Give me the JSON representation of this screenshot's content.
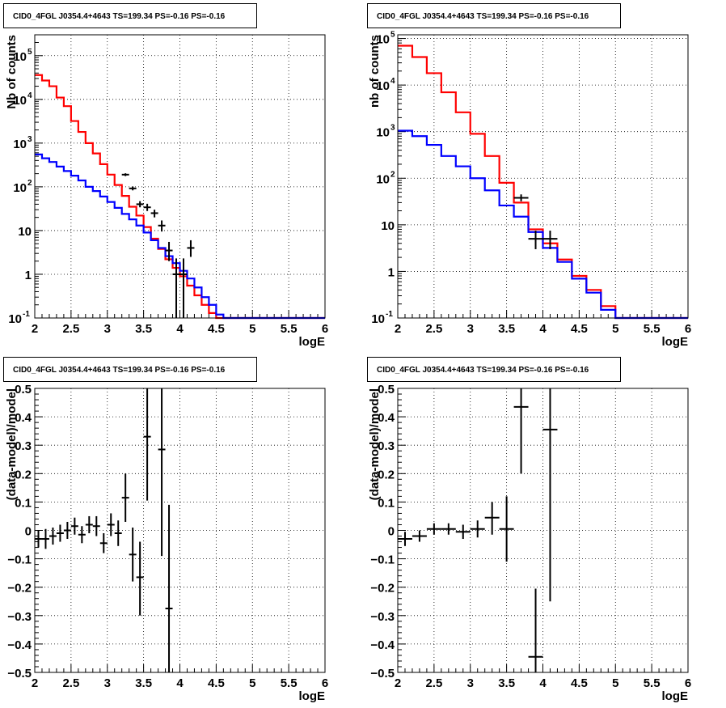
{
  "colors": {
    "data": "#000000",
    "total_model": "#ff0000",
    "component_model": "#0000ff",
    "grid": "#000000"
  },
  "chart_data": [
    {
      "type": "line",
      "title": "CID0_4FGL J0354.4+4643 TS=199.34 PS=-0.16 PS=-0.16",
      "xlabel": "logE",
      "ylabel": "Nb of counts",
      "xlim": [
        2,
        6
      ],
      "ylim": [
        0.1,
        300000
      ],
      "yscale": "log",
      "grid": true,
      "xticks": [
        2,
        2.5,
        3,
        3.5,
        4,
        4.5,
        5,
        5.5,
        6
      ],
      "xtick_labels": [
        "2",
        "2.5",
        "3",
        "3.5",
        "4",
        "4.5",
        "5",
        "5.5",
        "6"
      ],
      "yticks": [
        0.1,
        1,
        10,
        100,
        1000,
        10000,
        100000
      ],
      "ytick_labels": [
        [
          "10",
          "-1"
        ],
        [
          "1",
          ""
        ],
        [
          "10",
          ""
        ],
        [
          "10",
          "2"
        ],
        [
          "10",
          "3"
        ],
        [
          "10",
          "4"
        ],
        [
          "10",
          "5"
        ]
      ],
      "bin_edges": [
        2,
        2.1,
        2.2,
        2.3,
        2.4,
        2.5,
        2.6,
        2.7,
        2.8,
        2.9,
        3,
        3.1,
        3.2,
        3.3,
        3.4,
        3.5,
        3.6,
        3.7,
        3.8,
        3.9,
        4,
        4.1,
        4.2,
        4.3,
        4.4,
        4.5,
        4.6,
        4.7,
        4.8,
        4.9,
        5,
        5.1,
        5.2,
        5.3,
        5.4,
        5.5,
        5.6,
        5.7,
        5.8,
        5.9,
        6
      ],
      "series": [
        {
          "style": "hist",
          "color": "#ff0000",
          "values": [
            36000,
            27000,
            20000,
            11000,
            7000,
            3200,
            1800,
            1000,
            580,
            330,
            190,
            110,
            62,
            35,
            22,
            12,
            6.5,
            3.8,
            2.2,
            1.4,
            0.9,
            0.55,
            0.33,
            0.2,
            0.13,
            0.1,
            0.1,
            0.1,
            0.1,
            0.1,
            0.1,
            0.1,
            0.1,
            0.1,
            0.1,
            0.1,
            0.1,
            0.1,
            0.1,
            0.1
          ]
        },
        {
          "style": "hist",
          "color": "#0000ff",
          "values": [
            550,
            450,
            370,
            290,
            230,
            180,
            140,
            100,
            80,
            60,
            45,
            33,
            24,
            18,
            13,
            9,
            6,
            4,
            2.6,
            1.8,
            1.2,
            0.8,
            0.5,
            0.3,
            0.2,
            0.12,
            0.1,
            0.1,
            0.1,
            0.1,
            0.1,
            0.1,
            0.1,
            0.1,
            0.1,
            0.1,
            0.1,
            0.1,
            0.1,
            0.1
          ]
        },
        {
          "style": "errorbar",
          "color": "#000000",
          "points": [
            {
              "x": 3.25,
              "y": 190,
              "xerr": 0.05,
              "ylo": 176,
              "yhi": 204
            },
            {
              "x": 3.35,
              "y": 92,
              "xerr": 0.05,
              "ylo": 83,
              "yhi": 102
            },
            {
              "x": 3.45,
              "y": 40,
              "xerr": 0.05,
              "ylo": 34,
              "yhi": 47
            },
            {
              "x": 3.55,
              "y": 34,
              "xerr": 0.05,
              "ylo": 28,
              "yhi": 41
            },
            {
              "x": 3.65,
              "y": 25,
              "xerr": 0.05,
              "ylo": 20,
              "yhi": 30
            },
            {
              "x": 3.75,
              "y": 13,
              "xerr": 0.05,
              "ylo": 9.5,
              "yhi": 17
            },
            {
              "x": 3.85,
              "y": 3.5,
              "xerr": 0.05,
              "ylo": 2.0,
              "yhi": 5.5
            },
            {
              "x": 3.95,
              "y": 1,
              "xerr": 0.05,
              "ylo": 0.1,
              "yhi": 2.3
            },
            {
              "x": 4.05,
              "y": 1,
              "xerr": 0.05,
              "ylo": 0.1,
              "yhi": 2.3
            },
            {
              "x": 4.15,
              "y": 4,
              "xerr": 0.05,
              "ylo": 2.5,
              "yhi": 6
            }
          ]
        }
      ]
    },
    {
      "type": "line",
      "title": "CID0_4FGL J0354.4+4643 TS=199.34 PS=-0.16 PS=-0.16",
      "xlabel": "logE",
      "ylabel": "nb of counts",
      "xlim": [
        2,
        6
      ],
      "ylim": [
        0.1,
        120000
      ],
      "yscale": "log",
      "grid": true,
      "xticks": [
        2,
        2.5,
        3,
        3.5,
        4,
        4.5,
        5,
        5.5,
        6
      ],
      "xtick_labels": [
        "2",
        "2.5",
        "3",
        "3.5",
        "4",
        "4.5",
        "5",
        "5.5",
        "6"
      ],
      "yticks": [
        0.1,
        1,
        10,
        100,
        1000,
        10000,
        100000
      ],
      "ytick_labels": [
        [
          "10",
          "-1"
        ],
        [
          "1",
          ""
        ],
        [
          "10",
          ""
        ],
        [
          "10",
          "2"
        ],
        [
          "10",
          "3"
        ],
        [
          "10",
          "4"
        ],
        [
          "10",
          "5"
        ]
      ],
      "bin_edges": [
        2,
        2.2,
        2.4,
        2.6,
        2.8,
        3,
        3.2,
        3.4,
        3.6,
        3.8,
        4,
        4.2,
        4.4,
        4.6,
        4.8,
        5,
        5.2,
        5.4,
        5.6,
        5.8,
        6
      ],
      "series": [
        {
          "style": "hist",
          "color": "#ff0000",
          "values": [
            70000,
            40000,
            18000,
            7000,
            2600,
            900,
            300,
            80,
            30,
            8,
            4,
            1.8,
            0.8,
            0.4,
            0.18,
            0.1,
            0.1,
            0.1,
            0.1,
            0.1
          ]
        },
        {
          "style": "hist",
          "color": "#0000ff",
          "values": [
            1050,
            800,
            520,
            300,
            180,
            100,
            55,
            26,
            15,
            7,
            3.2,
            1.6,
            0.7,
            0.35,
            0.15,
            0.1,
            0.1,
            0.1,
            0.1,
            0.1
          ]
        },
        {
          "style": "errorbar",
          "color": "#000000",
          "points": [
            {
              "x": 3.7,
              "y": 38,
              "xerr": 0.1,
              "ylo": 32,
              "yhi": 45
            },
            {
              "x": 3.9,
              "y": 5,
              "xerr": 0.1,
              "ylo": 3,
              "yhi": 7.5
            },
            {
              "x": 4.1,
              "y": 5,
              "xerr": 0.1,
              "ylo": 3,
              "yhi": 7.5
            }
          ]
        }
      ]
    },
    {
      "type": "scatter",
      "title": "CID0_4FGL J0354.4+4643 TS=199.34 PS=-0.16 PS=-0.16",
      "xlabel": "logE",
      "ylabel": "(data-model)/model",
      "xlim": [
        2,
        6
      ],
      "ylim": [
        -0.5,
        0.5
      ],
      "yscale": "linear",
      "grid": true,
      "xticks": [
        2,
        2.5,
        3,
        3.5,
        4,
        4.5,
        5,
        5.5,
        6
      ],
      "xtick_labels": [
        "2",
        "2.5",
        "3",
        "3.5",
        "4",
        "4.5",
        "5",
        "5.5",
        "6"
      ],
      "yticks": [
        -0.5,
        -0.4,
        -0.3,
        -0.2,
        -0.1,
        0,
        0.1,
        0.2,
        0.3,
        0.4,
        0.5
      ],
      "ytick_labels": [
        "−0.5",
        "−0.4",
        "−0.3",
        "−0.2",
        "−0.1",
        "0",
        "0.1",
        "0.2",
        "0.3",
        "0.4",
        "0.5"
      ],
      "series": [
        {
          "style": "errorbar",
          "color": "#000000",
          "points": [
            {
              "x": 2.05,
              "y": -0.03,
              "xerr": 0.05,
              "ylo": -0.06,
              "yhi": 0.0
            },
            {
              "x": 2.15,
              "y": -0.03,
              "xerr": 0.05,
              "ylo": -0.065,
              "yhi": 0.005
            },
            {
              "x": 2.25,
              "y": -0.02,
              "xerr": 0.05,
              "ylo": -0.05,
              "yhi": 0.01
            },
            {
              "x": 2.35,
              "y": -0.01,
              "xerr": 0.05,
              "ylo": -0.04,
              "yhi": 0.02
            },
            {
              "x": 2.45,
              "y": 0.0,
              "xerr": 0.05,
              "ylo": -0.03,
              "yhi": 0.03
            },
            {
              "x": 2.55,
              "y": 0.015,
              "xerr": 0.05,
              "ylo": -0.015,
              "yhi": 0.045
            },
            {
              "x": 2.65,
              "y": -0.015,
              "xerr": 0.05,
              "ylo": -0.045,
              "yhi": 0.015
            },
            {
              "x": 2.75,
              "y": 0.02,
              "xerr": 0.05,
              "ylo": -0.01,
              "yhi": 0.05
            },
            {
              "x": 2.85,
              "y": 0.015,
              "xerr": 0.05,
              "ylo": -0.02,
              "yhi": 0.05
            },
            {
              "x": 2.95,
              "y": -0.045,
              "xerr": 0.05,
              "ylo": -0.08,
              "yhi": -0.01
            },
            {
              "x": 3.05,
              "y": 0.02,
              "xerr": 0.05,
              "ylo": -0.02,
              "yhi": 0.06
            },
            {
              "x": 3.15,
              "y": -0.01,
              "xerr": 0.05,
              "ylo": -0.055,
              "yhi": 0.035
            },
            {
              "x": 3.25,
              "y": 0.115,
              "xerr": 0.05,
              "ylo": 0.03,
              "yhi": 0.2
            },
            {
              "x": 3.35,
              "y": -0.085,
              "xerr": 0.05,
              "ylo": -0.18,
              "yhi": 0.01
            },
            {
              "x": 3.45,
              "y": -0.165,
              "xerr": 0.05,
              "ylo": -0.3,
              "yhi": -0.04
            },
            {
              "x": 3.55,
              "y": 0.33,
              "xerr": 0.05,
              "ylo": 0.105,
              "yhi": 0.5
            },
            {
              "x": 3.75,
              "y": 0.285,
              "xerr": 0.05,
              "ylo": -0.09,
              "yhi": 0.5
            },
            {
              "x": 3.85,
              "y": -0.275,
              "xerr": 0.05,
              "ylo": -0.5,
              "yhi": 0.09
            }
          ]
        }
      ]
    },
    {
      "type": "scatter",
      "title": "CID0_4FGL J0354.4+4643 TS=199.34 PS=-0.16 PS=-0.16",
      "xlabel": "logE",
      "ylabel": "(data-model)/model",
      "xlim": [
        2,
        6
      ],
      "ylim": [
        -0.5,
        0.5
      ],
      "yscale": "linear",
      "grid": true,
      "xticks": [
        2,
        2.5,
        3,
        3.5,
        4,
        4.5,
        5,
        5.5,
        6
      ],
      "xtick_labels": [
        "2",
        "2.5",
        "3",
        "3.5",
        "4",
        "4.5",
        "5",
        "5.5",
        "6"
      ],
      "yticks": [
        -0.5,
        -0.4,
        -0.3,
        -0.2,
        -0.1,
        0,
        0.1,
        0.2,
        0.3,
        0.4,
        0.5
      ],
      "ytick_labels": [
        "−0.5",
        "−0.4",
        "−0.3",
        "−0.2",
        "−0.1",
        "0",
        "0.1",
        "0.2",
        "0.3",
        "0.4",
        "0.5"
      ],
      "series": [
        {
          "style": "errorbar",
          "color": "#000000",
          "points": [
            {
              "x": 2.1,
              "y": -0.03,
              "xerr": 0.1,
              "ylo": -0.055,
              "yhi": -0.005
            },
            {
              "x": 2.3,
              "y": -0.02,
              "xerr": 0.1,
              "ylo": -0.04,
              "yhi": 0.0
            },
            {
              "x": 2.5,
              "y": 0.005,
              "xerr": 0.1,
              "ylo": -0.015,
              "yhi": 0.025
            },
            {
              "x": 2.7,
              "y": 0.005,
              "xerr": 0.1,
              "ylo": -0.015,
              "yhi": 0.025
            },
            {
              "x": 2.9,
              "y": -0.005,
              "xerr": 0.1,
              "ylo": -0.03,
              "yhi": 0.02
            },
            {
              "x": 3.1,
              "y": 0.005,
              "xerr": 0.1,
              "ylo": -0.025,
              "yhi": 0.035
            },
            {
              "x": 3.3,
              "y": 0.045,
              "xerr": 0.1,
              "ylo": -0.015,
              "yhi": 0.1
            },
            {
              "x": 3.5,
              "y": 0.005,
              "xerr": 0.1,
              "ylo": -0.11,
              "yhi": 0.12
            },
            {
              "x": 3.7,
              "y": 0.435,
              "xerr": 0.1,
              "ylo": 0.2,
              "yhi": 0.5
            },
            {
              "x": 3.9,
              "y": -0.445,
              "xerr": 0.1,
              "ylo": -0.5,
              "yhi": -0.205
            },
            {
              "x": 4.1,
              "y": 0.355,
              "xerr": 0.1,
              "ylo": -0.25,
              "yhi": 0.5
            }
          ]
        }
      ]
    }
  ]
}
